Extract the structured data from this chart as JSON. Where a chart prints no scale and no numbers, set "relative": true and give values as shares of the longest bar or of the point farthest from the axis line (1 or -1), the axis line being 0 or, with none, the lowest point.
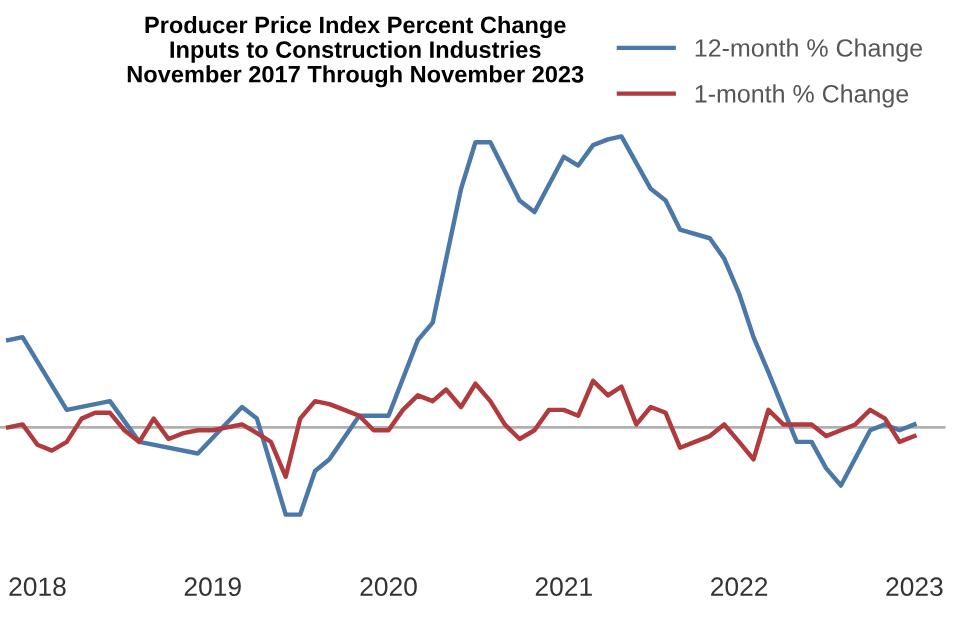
{
  "chart_data": {
    "type": "line",
    "relative": true,
    "title": "Producer Price Index Percent Change\nInputs to Construction Industries\nNovember 2017 Through November 2023",
    "xlim": [
      "2018-08-15",
      "2024-01-05"
    ],
    "xticks": [
      {
        "value": "2018-11",
        "label": "2018"
      },
      {
        "value": "2019-11",
        "label": "2019"
      },
      {
        "value": "2020-11",
        "label": "2020"
      },
      {
        "value": "2021-11",
        "label": "2021"
      },
      {
        "value": "2022-11",
        "label": "2022"
      },
      {
        "value": "2023-11",
        "label": "2023"
      }
    ],
    "legend": "top right",
    "grid": false,
    "marker": "none",
    "line_style": "solid",
    "series": [
      {
        "name": "12-month % Change",
        "color": "#4a78a8",
        "x": [
          "2018-09",
          "2018-10",
          "2019-01",
          "2019-04",
          "2019-06",
          "2019-10",
          "2020-01",
          "2020-02",
          "2020-04",
          "2020-05",
          "2020-06",
          "2020-07",
          "2020-09",
          "2020-11",
          "2021-01",
          "2021-02",
          "2021-04",
          "2021-05",
          "2021-06",
          "2021-08",
          "2021-09",
          "2021-11",
          "2021-12",
          "2022-01",
          "2022-02",
          "2022-03",
          "2022-05",
          "2022-06",
          "2022-07",
          "2022-09",
          "2022-10",
          "2022-11",
          "2022-12",
          "2023-01",
          "2023-03",
          "2023-04",
          "2023-05",
          "2023-06",
          "2023-08",
          "2023-09",
          "2023-10",
          "2023-11"
        ],
        "values": [
          0.3,
          0.31,
          0.06,
          0.09,
          -0.05,
          -0.09,
          0.07,
          0.03,
          -0.3,
          -0.3,
          -0.15,
          -0.11,
          0.04,
          0.04,
          0.3,
          0.36,
          0.82,
          0.98,
          0.98,
          0.78,
          0.74,
          0.93,
          0.9,
          0.97,
          0.99,
          1,
          0.82,
          0.78,
          0.68,
          0.65,
          0.58,
          0.46,
          0.31,
          0.19,
          -0.05,
          -0.05,
          -0.14,
          -0.2,
          -0.01,
          0.01,
          -0.01,
          0.01
        ]
      },
      {
        "name": "1-month % Change",
        "color": "#b03a3e",
        "x": [
          "2018-09",
          "2018-10",
          "2018-11",
          "2018-12",
          "2019-01",
          "2019-02",
          "2019-03",
          "2019-04",
          "2019-05",
          "2019-06",
          "2019-07",
          "2019-08",
          "2019-09",
          "2019-10",
          "2019-11",
          "2019-12",
          "2020-01",
          "2020-02",
          "2020-03",
          "2020-04",
          "2020-05",
          "2020-06",
          "2020-07",
          "2020-08",
          "2020-09",
          "2020-10",
          "2020-11",
          "2020-12",
          "2021-01",
          "2021-02",
          "2021-03",
          "2021-04",
          "2021-05",
          "2021-06",
          "2021-07",
          "2021-08",
          "2021-09",
          "2021-10",
          "2021-11",
          "2021-12",
          "2022-01",
          "2022-02",
          "2022-03",
          "2022-04",
          "2022-05",
          "2022-06",
          "2022-07",
          "2022-08",
          "2022-09",
          "2022-10",
          "2022-11",
          "2022-12",
          "2023-01",
          "2023-02",
          "2023-03",
          "2023-04",
          "2023-05",
          "2023-06",
          "2023-07",
          "2023-08",
          "2023-09",
          "2023-10",
          "2023-11"
        ],
        "values": [
          0,
          0.01,
          -0.06,
          -0.08,
          -0.05,
          0.03,
          0.05,
          0.05,
          -0.01,
          -0.05,
          0.03,
          -0.04,
          -0.02,
          -0.01,
          -0.01,
          0,
          0.01,
          -0.02,
          -0.05,
          -0.17,
          0.03,
          0.09,
          0.08,
          0.06,
          0.04,
          -0.01,
          -0.01,
          0.06,
          0.11,
          0.09,
          0.13,
          0.07,
          0.15,
          0.09,
          0.01,
          -0.04,
          -0.01,
          0.06,
          0.06,
          0.04,
          0.16,
          0.11,
          0.14,
          0.01,
          0.07,
          0.05,
          -0.07,
          -0.05,
          -0.03,
          0.01,
          -0.05,
          -0.11,
          0.06,
          0.01,
          0.01,
          0.01,
          -0.03,
          -0.01,
          0.01,
          0.06,
          0.03,
          -0.05,
          -0.03
        ]
      }
    ]
  }
}
